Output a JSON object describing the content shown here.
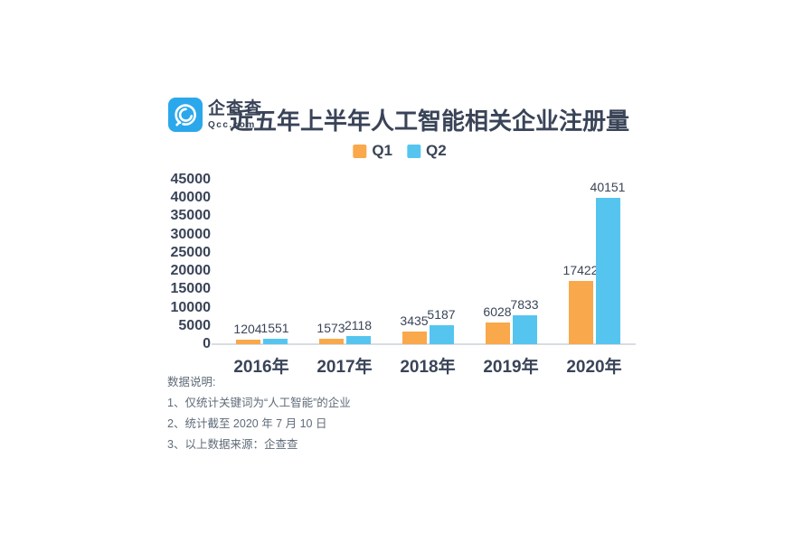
{
  "header": {
    "logo": {
      "brand_name": "企查查",
      "brand_domain": "Qcc.com",
      "icon": "qcc-spiral-magnifier-icon",
      "icon_color": "#2ba8ec"
    },
    "title": "近五年上半年人工智能相关企业注册量"
  },
  "chart_data": {
    "type": "bar",
    "title": "近五年上半年人工智能相关企业注册量",
    "categories": [
      "2016年",
      "2017年",
      "2018年",
      "2019年",
      "2020年"
    ],
    "series": [
      {
        "name": "Q1",
        "color": "#f9a84b",
        "values": [
          1204,
          1573,
          3435,
          6028,
          17422
        ]
      },
      {
        "name": "Q2",
        "color": "#55c5f0",
        "values": [
          1551,
          2118,
          5187,
          7833,
          40151
        ]
      }
    ],
    "xlabel": "",
    "ylabel": "",
    "ylim": [
      0,
      45000
    ],
    "y_ticks": [
      45000,
      40000,
      35000,
      30000,
      25000,
      20000,
      15000,
      10000,
      5000,
      0
    ],
    "grid": false,
    "legend_position": "top",
    "data_labels": true,
    "text_color": "#3a4458",
    "baseline_color": "#d9dde2"
  },
  "notes": {
    "heading": "数据说明:",
    "items": [
      "1、仅统计关键词为“人工智能”的企业",
      "2、统计截至 2020 年 7 月 10 日",
      "3、以上数据来源：企查查"
    ]
  }
}
